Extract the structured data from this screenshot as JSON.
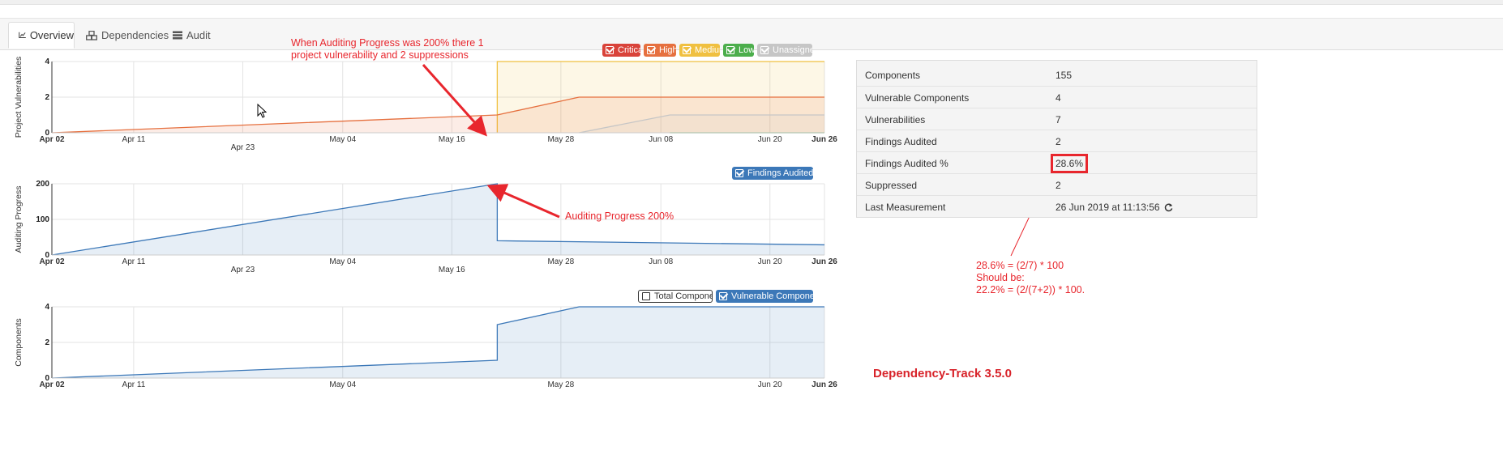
{
  "tabs": [
    {
      "label": "Overview",
      "icon": "line-chart-icon",
      "active": true
    },
    {
      "label": "Dependencies",
      "icon": "cubes-icon",
      "active": false
    },
    {
      "label": "Audit",
      "icon": "tasks-icon",
      "active": false
    }
  ],
  "chart1_legend": [
    {
      "label": "Critical",
      "color": "#d9433a",
      "checked": true
    },
    {
      "label": "High",
      "color": "#e6703f",
      "checked": true
    },
    {
      "label": "Medium",
      "color": "#f0c040",
      "checked": true
    },
    {
      "label": "Low",
      "color": "#4cae4c",
      "checked": true
    },
    {
      "label": "Unassigned",
      "color": "#c6c6c6",
      "checked": true
    }
  ],
  "chart2_legend": [
    {
      "label": "Findings Audited %",
      "color": "#3c78b8",
      "checked": true
    }
  ],
  "chart3_legend": [
    {
      "label": "Total Components",
      "color": "#ffffff",
      "checked": false
    },
    {
      "label": "Vulnerable Component...",
      "color": "#3c78b8",
      "checked": true
    }
  ],
  "chart_data": [
    {
      "type": "area",
      "ylabel": "Project Vulnerabilities",
      "ylim": [
        0,
        4
      ],
      "yticks": [
        "0",
        "2",
        "4"
      ],
      "x_ticks_top": [
        "Apr 02",
        "Apr 11",
        "May 04",
        "May 16",
        "May 28",
        "Jun 08",
        "Jun 20",
        "Jun 26"
      ],
      "x_ticks_bottom": [
        "Apr 23"
      ],
      "series": [
        {
          "name": "Medium",
          "color": "#f0c040",
          "x": [
            "May 21",
            "May 21",
            "Jun 26"
          ],
          "values": [
            0,
            4,
            4
          ]
        },
        {
          "name": "High",
          "color": "#e6703f",
          "x": [
            "Apr 02",
            "May 21",
            "May 30",
            "Jun 26"
          ],
          "values": [
            0,
            1,
            2,
            2
          ]
        },
        {
          "name": "Unassigned",
          "color": "#c6c6c6",
          "x": [
            "May 30",
            "Jun 09",
            "Jun 26"
          ],
          "values": [
            0,
            1,
            1
          ]
        },
        {
          "name": "Low",
          "color": "#4cae4c",
          "x": [
            "Jun 09",
            "Jun 26"
          ],
          "values": [
            0,
            0
          ]
        }
      ],
      "legend": "top-right",
      "grid": true
    },
    {
      "type": "area",
      "ylabel": "Auditing Progress",
      "ylim": [
        0,
        200
      ],
      "yticks": [
        "0",
        "100",
        "200"
      ],
      "x_ticks_top": [
        "Apr 02",
        "Apr 11",
        "May 04",
        "May 28",
        "Jun 08",
        "Jun 20",
        "Jun 26"
      ],
      "x_ticks_bottom": [
        "Apr 23",
        "May 16"
      ],
      "series": [
        {
          "name": "Findings Audited %",
          "color": "#3c78b8",
          "x": [
            "Apr 02",
            "May 21",
            "May 21",
            "Jun 26"
          ],
          "values": [
            0,
            200,
            40,
            28.6
          ]
        }
      ],
      "legend": "top-right",
      "grid": true
    },
    {
      "type": "area",
      "ylabel": "Components",
      "ylim": [
        0,
        4
      ],
      "yticks": [
        "0",
        "2",
        "4"
      ],
      "x_ticks_top": [
        "Apr 02",
        "Apr 11",
        "May 04",
        "May 28",
        "Jun 20",
        "Jun 26"
      ],
      "x_ticks_bottom": [],
      "series": [
        {
          "name": "Vulnerable Component...",
          "color": "#3c78b8",
          "x": [
            "Apr 02",
            "May 21",
            "May 21",
            "May 30",
            "Jun 26"
          ],
          "values": [
            0,
            1,
            3,
            4,
            4
          ]
        }
      ],
      "legend": "top-right",
      "grid": true
    }
  ],
  "annotations": {
    "chart1_note_line1": "When Auditing Progress was 200% there 1",
    "chart1_note_line2": "project vulnerability and 2 suppressions",
    "chart2_note": "Auditing Progress 200%",
    "formula_line1": "28.6% = (2/7) * 100",
    "formula_line2": "Should be:",
    "formula_line3": "22.2% = (2/(7+2)) * 100.",
    "version": "Dependency-Track 3.5.0"
  },
  "metrics": [
    {
      "label": "Components",
      "value": "155"
    },
    {
      "label": "Vulnerable Components",
      "value": "4"
    },
    {
      "label": "Vulnerabilities",
      "value": "7"
    },
    {
      "label": "Findings Audited",
      "value": "2"
    },
    {
      "label": "Findings Audited %",
      "value": "28.6%"
    },
    {
      "label": "Suppressed",
      "value": "2"
    },
    {
      "label": "Last Measurement",
      "value": "26 Jun 2019 at 11:13:56"
    }
  ]
}
